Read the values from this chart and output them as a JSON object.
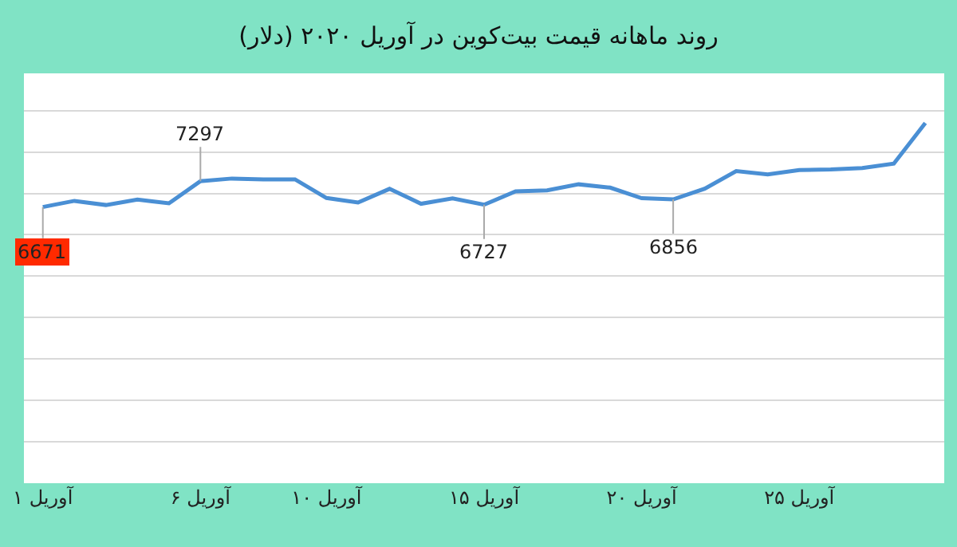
{
  "chart_data": {
    "type": "line",
    "title": "روند ماهانه قیمت بیت‌کوین در آوریل ۲۰۲۰ (دلار)",
    "x": [
      1,
      2,
      3,
      4,
      5,
      6,
      7,
      8,
      9,
      10,
      11,
      12,
      13,
      14,
      15,
      16,
      17,
      18,
      19,
      20,
      21,
      22,
      23,
      24,
      25,
      26,
      27,
      28,
      29
    ],
    "series": [
      {
        "color": "#4a8fd4",
        "values": [
          6671,
          6820,
          6720,
          6850,
          6760,
          7297,
          7360,
          7340,
          7340,
          6890,
          6780,
          7110,
          6750,
          6880,
          6727,
          7050,
          7075,
          7220,
          7140,
          6885,
          6856,
          7115,
          7540,
          7460,
          7565,
          7580,
          7615,
          7720,
          8700
        ],
        "value_labels": [
          "6671",
          null,
          null,
          null,
          null,
          "7297",
          null,
          null,
          null,
          null,
          null,
          null,
          null,
          null,
          "6727",
          null,
          null,
          null,
          null,
          null,
          "6856",
          null,
          null,
          null,
          null,
          null,
          null,
          null,
          null
        ]
      }
    ],
    "xlim": [
      0.4,
      29.6
    ],
    "xticks": [
      {
        "value": 1,
        "label": "۱ آوریل"
      },
      {
        "value": 6,
        "label": "۶ آوریل"
      },
      {
        "value": 10,
        "label": "۱۰ آوریل"
      },
      {
        "value": 15,
        "label": "۱۵ آوریل"
      },
      {
        "value": 20,
        "label": "۲۰ آوریل"
      },
      {
        "value": 25,
        "label": "۲۵ آوریل"
      }
    ],
    "ylim": [
      0,
      9900
    ],
    "yticks": [
      {
        "value": 1000,
        "label": null
      },
      {
        "value": 2000,
        "label": null
      },
      {
        "value": 3000,
        "label": null
      },
      {
        "value": 4000,
        "label": null
      },
      {
        "value": 5000,
        "label": null
      },
      {
        "value": 6000,
        "label": null
      },
      {
        "value": 7000,
        "label": null
      },
      {
        "value": 8000,
        "label": null
      },
      {
        "value": 9000,
        "label": null
      }
    ],
    "grid": "y",
    "tick_labels": "x",
    "marker": "none",
    "line_style": "solid"
  }
}
